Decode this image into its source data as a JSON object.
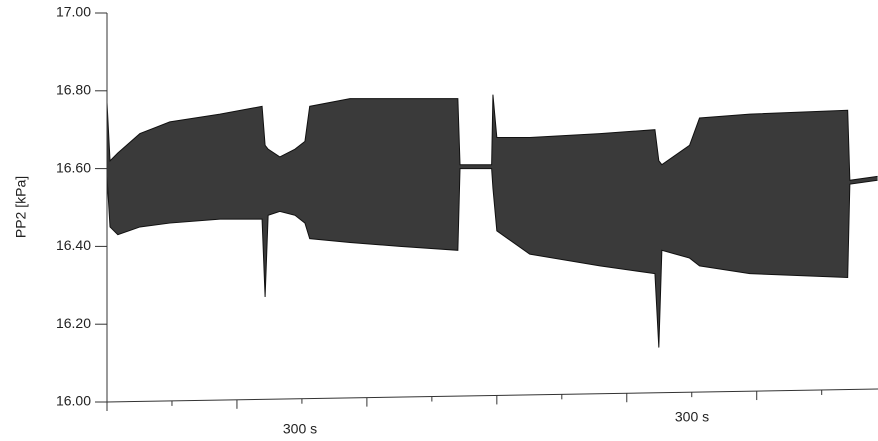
{
  "chart_data": {
    "type": "range-area",
    "y_label": "PP2  [kPa]",
    "annotations": [
      "300 s",
      "300 s"
    ],
    "x": [
      0,
      7,
      25,
      76,
      145,
      261,
      358,
      365,
      372,
      399,
      434,
      457,
      468,
      561,
      676,
      810,
      815,
      888,
      891,
      900,
      976,
      1138,
      1265,
      1274,
      1281,
      1345,
      1368,
      1484,
      1710,
      1715,
      1779
    ],
    "series": [
      {
        "color": "#3a3a3a",
        "values": [
          16.77,
          16.62,
          16.64,
          16.69,
          16.72,
          16.74,
          16.76,
          16.66,
          16.65,
          16.63,
          16.65,
          16.67,
          16.76,
          16.78,
          16.78,
          16.78,
          16.61,
          16.61,
          16.79,
          16.68,
          16.68,
          16.69,
          16.7,
          16.62,
          16.61,
          16.66,
          16.73,
          16.74,
          16.75,
          16.57,
          16.58
        ]
      },
      {
        "color": "#3a3a3a",
        "values": [
          16.58,
          16.45,
          16.43,
          16.45,
          16.46,
          16.47,
          16.47,
          16.27,
          16.48,
          16.49,
          16.48,
          16.46,
          16.42,
          16.41,
          16.4,
          16.39,
          16.6,
          16.6,
          16.55,
          16.44,
          16.38,
          16.35,
          16.33,
          16.14,
          16.39,
          16.37,
          16.35,
          16.33,
          16.32,
          16.56,
          16.57
        ]
      }
    ],
    "xlim": [
      0,
      1780
    ],
    "xticks": [
      0,
      150,
      300,
      450,
      600,
      750,
      900,
      1050,
      1200,
      1350,
      1500,
      1650
    ],
    "ylim": [
      16.0,
      17.0
    ],
    "yticks": [
      {
        "value": 16.0,
        "label": "16.00"
      },
      {
        "value": 16.2,
        "label": "16.20"
      },
      {
        "value": 16.4,
        "label": "16.40"
      },
      {
        "value": 16.6,
        "label": "16.60"
      },
      {
        "value": 16.8,
        "label": "16.80"
      },
      {
        "value": 17.0,
        "label": "17.00"
      }
    ]
  }
}
